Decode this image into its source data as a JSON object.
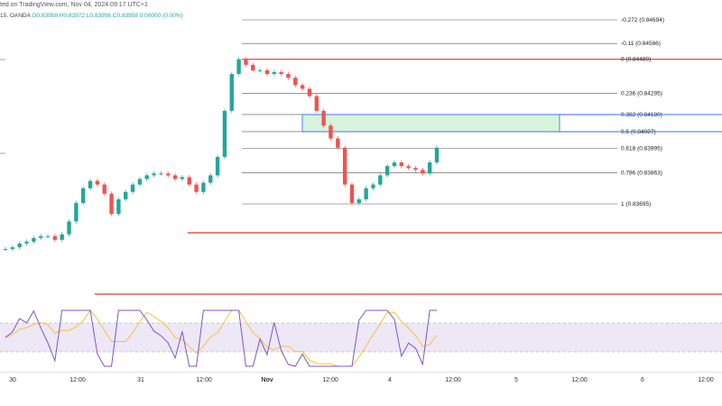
{
  "header": {
    "prefix": "ted on TradingView.com, Nov 04, 2024 09:17 UTC+1"
  },
  "ticker": {
    "symbol": "15, OANDA",
    "o": "O0.83958",
    "h": "H0.83972",
    "l": "L0.83956",
    "c": "C0.83958",
    "chg": "0.00000 (0.00%)"
  },
  "fib_levels": [
    {
      "label": "-0.272 (0.84694)",
      "price": 0.84694
    },
    {
      "label": "-0.11 (0.84566)",
      "price": 0.84566
    },
    {
      "label": "0 (0.84480)",
      "price": 0.8448
    },
    {
      "label": "0.236 (0.84295)",
      "price": 0.84295
    },
    {
      "label": "0.382 (0.84180)",
      "price": 0.8418
    },
    {
      "label": "0.5 (0.84087)",
      "price": 0.84087
    },
    {
      "label": "0.618 (0.83995)",
      "price": 0.83995
    },
    {
      "label": "0.786 (0.83863)",
      "price": 0.83863
    },
    {
      "label": "1 (0.83695)",
      "price": 0.83695
    }
  ],
  "x_axis": {
    "labels": [
      "30",
      "12:00",
      "31",
      "12:00",
      "Nov",
      "12:00",
      "4",
      "12:00",
      "5",
      "12:00",
      "6",
      "12:00"
    ]
  },
  "colors": {
    "bull": "#26a69a",
    "bear": "#ef5350",
    "zone_fill": "#d8f3dc",
    "zone_border": "#2962ff",
    "rsi_line": "#7e57c2",
    "rsi_ma": "#f5c242",
    "rsi_band": "#ede7f6",
    "fib_line": "#555555",
    "support": "#e53935"
  },
  "chart_data": {
    "type": "line",
    "title": "",
    "series": [
      {
        "values": [
          0.8345,
          0.8346,
          0.8348,
          0.8349,
          0.8351,
          0.8352,
          0.8352,
          0.835,
          0.8353,
          0.836,
          0.837,
          0.8378,
          0.8382,
          0.838,
          0.8375,
          0.8364,
          0.8372,
          0.8376,
          0.838,
          0.8383,
          0.8385,
          0.8386,
          0.8386,
          0.8385,
          0.8383,
          0.8384,
          0.838,
          0.8376,
          0.8381,
          0.8385,
          0.8395,
          0.842,
          0.844,
          0.8448,
          0.8445,
          0.8442,
          0.8442,
          0.844,
          0.8441,
          0.844,
          0.8438,
          0.8434,
          0.8432,
          0.8428,
          0.842,
          0.8412,
          0.8405,
          0.84,
          0.838,
          0.837,
          0.8372,
          0.8378,
          0.838,
          0.8385,
          0.839,
          0.8392,
          0.839,
          0.8389,
          0.8388,
          0.8386,
          0.8392,
          0.84
        ]
      }
    ]
  }
}
